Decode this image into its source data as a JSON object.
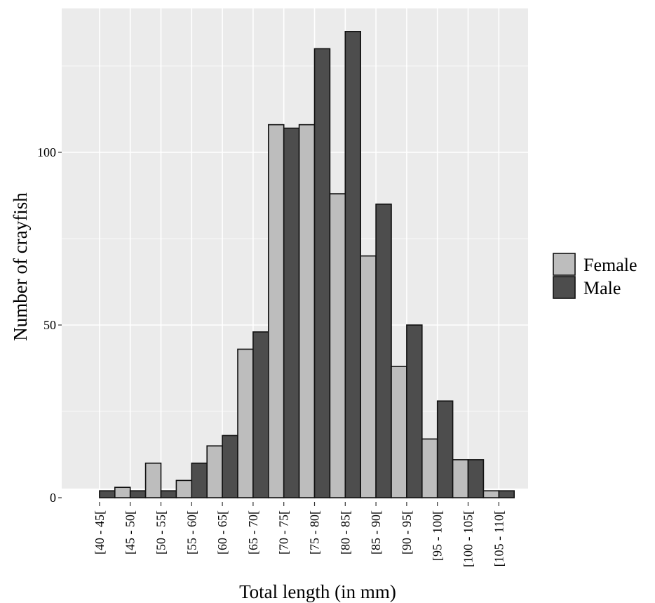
{
  "chart_data": {
    "type": "bar",
    "title": "",
    "xlabel": "Total length (in mm)",
    "ylabel": "Number of crayfish",
    "categories": [
      "[40 - 45[",
      "[45 - 50[",
      "[50 - 55[",
      "[55 - 60[",
      "[60 - 65[",
      "[65 - 70[",
      "[70 - 75[",
      "[75 - 80[",
      "[80 - 85[",
      "[85 - 90[",
      "[90 - 95[",
      "[95 - 100[",
      "[100 - 105[",
      "[105 - 110["
    ],
    "series": [
      {
        "name": "Female",
        "values": [
          0,
          3,
          10,
          5,
          15,
          43,
          108,
          108,
          88,
          70,
          38,
          17,
          11,
          2
        ],
        "color": "#bdbdbd"
      },
      {
        "name": "Male",
        "values": [
          2,
          2,
          2,
          10,
          18,
          48,
          107,
          130,
          135,
          85,
          50,
          28,
          11,
          2
        ],
        "color": "#4d4d4d"
      }
    ],
    "ylim": [
      0,
      142
    ],
    "yticks": [
      0,
      50,
      100
    ],
    "grid": true,
    "legend_position": "right",
    "panel_color": "#ebebeb",
    "grid_color": "#ffffff"
  }
}
